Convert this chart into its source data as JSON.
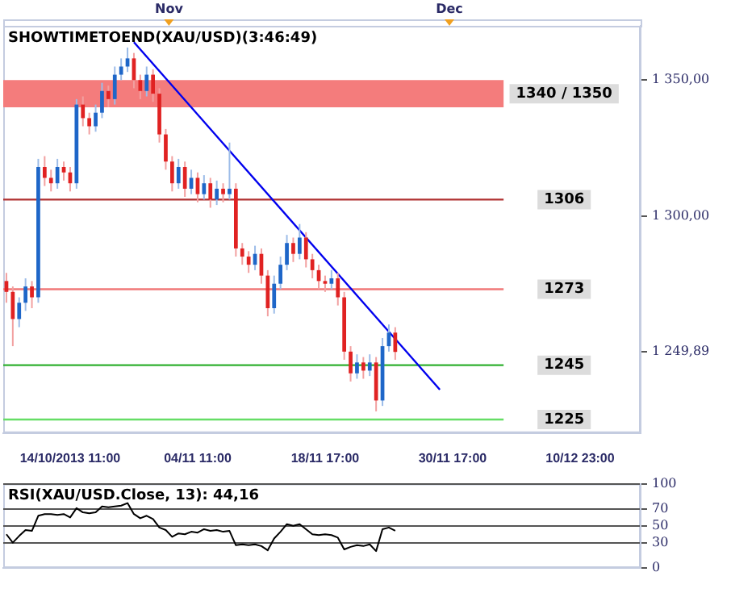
{
  "chart_data": [
    {
      "type": "candlestick",
      "title": "SHOWTIMETOEND(XAU/USD)(3:46:49)",
      "categories": [
        null,
        null,
        null,
        null,
        null,
        null,
        null,
        null,
        null,
        null,
        "14/10/2013 11:00",
        null,
        null,
        null,
        null,
        null,
        null,
        null,
        null,
        null,
        null,
        null,
        null,
        null,
        null,
        null,
        null,
        null,
        null,
        null,
        "04/11 11:00",
        null,
        null,
        null,
        null,
        null,
        null,
        null,
        null,
        null,
        null,
        null,
        null,
        null,
        null,
        null,
        null,
        null,
        null,
        null,
        "18/11 17:00",
        null,
        null,
        null,
        null,
        null,
        null,
        null,
        null,
        null,
        null,
        null,
        null,
        null,
        null,
        null,
        null,
        null,
        null,
        null,
        "30/11 17:00",
        null,
        null,
        null,
        null,
        null,
        null,
        null,
        null,
        null,
        null,
        null,
        null,
        null,
        null,
        null,
        null,
        null,
        null,
        null,
        "10/12 23:00",
        null,
        null,
        null,
        null,
        null,
        null,
        null,
        null,
        null
      ],
      "ohlc": [
        [
          1276,
          1279,
          1268,
          1272
        ],
        [
          1272,
          1274,
          1252,
          1262
        ],
        [
          1262,
          1270,
          1259,
          1268
        ],
        [
          1268,
          1277,
          1265,
          1274
        ],
        [
          1274,
          1276,
          1266,
          1270
        ],
        [
          1270,
          1321,
          1268,
          1318
        ],
        [
          1318,
          1322,
          1311,
          1314
        ],
        [
          1314,
          1317,
          1309,
          1312
        ],
        [
          1312,
          1321,
          1310,
          1318
        ],
        [
          1318,
          1320,
          1313,
          1316
        ],
        [
          1316,
          1318,
          1309,
          1312
        ],
        [
          1312,
          1343,
          1310,
          1341
        ],
        [
          1341,
          1344,
          1333,
          1336
        ],
        [
          1336,
          1338,
          1330,
          1333
        ],
        [
          1333,
          1341,
          1331,
          1338
        ],
        [
          1338,
          1349,
          1336,
          1346
        ],
        [
          1346,
          1348,
          1340,
          1343
        ],
        [
          1343,
          1355,
          1341,
          1352
        ],
        [
          1352,
          1358,
          1350,
          1355
        ],
        [
          1355,
          1362,
          1353,
          1358
        ],
        [
          1358,
          1360,
          1347,
          1350
        ],
        [
          1350,
          1352,
          1343,
          1346
        ],
        [
          1346,
          1355,
          1344,
          1352
        ],
        [
          1352,
          1354,
          1342,
          1345
        ],
        [
          1345,
          1347,
          1327,
          1330
        ],
        [
          1330,
          1332,
          1317,
          1320
        ],
        [
          1320,
          1322,
          1309,
          1312
        ],
        [
          1312,
          1321,
          1310,
          1318
        ],
        [
          1318,
          1320,
          1307,
          1310
        ],
        [
          1310,
          1317,
          1308,
          1314
        ],
        [
          1314,
          1316,
          1305,
          1308
        ],
        [
          1308,
          1315,
          1306,
          1312
        ],
        [
          1312,
          1314,
          1303,
          1306
        ],
        [
          1306,
          1313,
          1304,
          1310
        ],
        [
          1310,
          1312,
          1305,
          1308
        ],
        [
          1308,
          1327,
          1306,
          1310
        ],
        [
          1310,
          1312,
          1285,
          1288
        ],
        [
          1288,
          1290,
          1282,
          1285
        ],
        [
          1285,
          1287,
          1279,
          1282
        ],
        [
          1282,
          1289,
          1280,
          1286
        ],
        [
          1286,
          1288,
          1275,
          1278
        ],
        [
          1278,
          1280,
          1263,
          1266
        ],
        [
          1266,
          1278,
          1264,
          1275
        ],
        [
          1275,
          1285,
          1273,
          1282
        ],
        [
          1282,
          1293,
          1280,
          1290
        ],
        [
          1290,
          1292,
          1283,
          1286
        ],
        [
          1286,
          1297,
          1284,
          1292
        ],
        [
          1292,
          1294,
          1281,
          1284
        ],
        [
          1284,
          1286,
          1277,
          1280
        ],
        [
          1280,
          1282,
          1273,
          1276
        ],
        [
          1276,
          1278,
          1272,
          1275
        ],
        [
          1275,
          1280,
          1273,
          1277
        ],
        [
          1277,
          1279,
          1267,
          1270
        ],
        [
          1270,
          1272,
          1247,
          1250
        ],
        [
          1250,
          1252,
          1239,
          1242
        ],
        [
          1242,
          1249,
          1240,
          1246
        ],
        [
          1246,
          1248,
          1240,
          1243
        ],
        [
          1243,
          1249,
          1241,
          1246
        ],
        [
          1246,
          1248,
          1228,
          1232
        ],
        [
          1232,
          1255,
          1230,
          1252
        ],
        [
          1252,
          1260,
          1250,
          1257
        ],
        [
          1257,
          1259,
          1247,
          1249.89
        ],
        null,
        null,
        null,
        null,
        null,
        null,
        null,
        null,
        null,
        null,
        null,
        null,
        null,
        null,
        null,
        null,
        null,
        null,
        null,
        null,
        null,
        null,
        null,
        null,
        null,
        null,
        null,
        null,
        null,
        null,
        null,
        null,
        null,
        null,
        null,
        null,
        null,
        null
      ],
      "series": [
        {
          "type": "line",
          "color": "#0000ee",
          "values": [
            null,
            null,
            null,
            null,
            null,
            null,
            null,
            null,
            null,
            null,
            null,
            null,
            null,
            null,
            null,
            null,
            null,
            null,
            null,
            null,
            1364,
            null,
            null,
            null,
            null,
            null,
            null,
            null,
            null,
            null,
            null,
            null,
            null,
            null,
            null,
            null,
            null,
            null,
            null,
            null,
            null,
            null,
            null,
            null,
            null,
            null,
            null,
            null,
            null,
            null,
            null,
            null,
            null,
            null,
            null,
            null,
            null,
            null,
            null,
            null,
            null,
            null,
            null,
            null,
            null,
            null,
            null,
            null,
            1236,
            null,
            null,
            null,
            null,
            null,
            null,
            null,
            null,
            null,
            null,
            null,
            null,
            null,
            null,
            null,
            null,
            null,
            null,
            null,
            null,
            null,
            null,
            null,
            null,
            null,
            null,
            null,
            null,
            null,
            null,
            null
          ]
        }
      ],
      "ylim": [
        1220,
        1370
      ],
      "yticks": [
        {
          "value": 1350,
          "label": "1 350,00"
        },
        {
          "value": 1300,
          "label": "1 300,00"
        },
        {
          "value": 1249.89,
          "label": "1 249,89"
        }
      ],
      "ref_lines": [
        {
          "axis": "y",
          "value": 1306,
          "label": "1306",
          "color": "#b03030"
        },
        {
          "axis": "y",
          "value": 1273,
          "label": "1273",
          "color": "#f07878"
        },
        {
          "axis": "y",
          "value": 1245,
          "label": "1245",
          "color": "#30b030"
        },
        {
          "axis": "y",
          "value": 1225,
          "label": "1225",
          "color": "#66dd66"
        }
      ],
      "bands": [
        {
          "axis": "y",
          "from": 1340,
          "to": 1350,
          "label": "1340 / 1350",
          "color": "#f47c7c"
        }
      ],
      "annotations": [
        "Nov",
        "Dec"
      ],
      "grid": false,
      "legend": false
    },
    {
      "type": "line",
      "title": "RSI(XAU/USD.Close, 13): 44,16",
      "categories": [
        null,
        null,
        null,
        null,
        null,
        null,
        null,
        null,
        null,
        null,
        null,
        null,
        null,
        null,
        null,
        null,
        null,
        null,
        null,
        null,
        null,
        null,
        null,
        null,
        null,
        null,
        null,
        null,
        null,
        null,
        null,
        null,
        null,
        null,
        null,
        null,
        null,
        null,
        null,
        null,
        null,
        null,
        null,
        null,
        null,
        null,
        null,
        null,
        null,
        null,
        null,
        null,
        null,
        null,
        null,
        null,
        null,
        null,
        null,
        null,
        null,
        null,
        null,
        null,
        null,
        null,
        null,
        null,
        null,
        null,
        null,
        null,
        null,
        null,
        null,
        null,
        null,
        null,
        null,
        null,
        null,
        null,
        null,
        null,
        null,
        null,
        null,
        null,
        null,
        null,
        null,
        null,
        null,
        null,
        null,
        null,
        null,
        null,
        null,
        null
      ],
      "series": [
        {
          "color": "#000000",
          "values": [
            40,
            30,
            38,
            45,
            44,
            62,
            64,
            64,
            63,
            64,
            60,
            71,
            66,
            65,
            66,
            73,
            72,
            73,
            74,
            77,
            64,
            59,
            62,
            58,
            48,
            45,
            37,
            41,
            40,
            43,
            42,
            46,
            44,
            45,
            43,
            44,
            27,
            28,
            27,
            28,
            26,
            21,
            35,
            43,
            52,
            50,
            52,
            46,
            40,
            39,
            40,
            39,
            36,
            22,
            25,
            27,
            26,
            28,
            20,
            46,
            48,
            44.16,
            null,
            null,
            null,
            null,
            null,
            null,
            null,
            null,
            null,
            null,
            null,
            null,
            null,
            null,
            null,
            null,
            null,
            null,
            null,
            null,
            null,
            null,
            null,
            null,
            null,
            null,
            null,
            null,
            null,
            null,
            null,
            null,
            null,
            null,
            null,
            null,
            null,
            null
          ]
        }
      ],
      "ylim": [
        0,
        100
      ],
      "yticks": [
        0,
        30,
        50,
        70,
        100
      ],
      "grid": "y",
      "tick_labels": "y",
      "legend": false,
      "marker": "none"
    }
  ]
}
